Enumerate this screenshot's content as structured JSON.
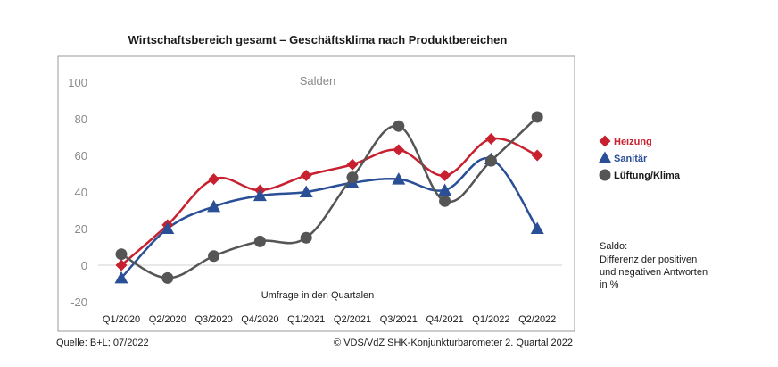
{
  "chart_data": {
    "type": "line",
    "title": "Wirtschaftsbereich gesamt – Geschäftsklima nach Produktbereichen",
    "plot_label": "Salden",
    "xlabel": "Umfrage in den Quartalen",
    "ylabel": "",
    "ylim": [
      -20,
      100
    ],
    "yticks": [
      -20,
      0,
      20,
      40,
      60,
      80,
      100
    ],
    "grid": false,
    "legend_position": "right",
    "categories": [
      "Q1/2020",
      "Q2/2020",
      "Q3/2020",
      "Q4/2020",
      "Q1/2021",
      "Q2/2021",
      "Q3/2021",
      "Q4/2021",
      "Q1/2022",
      "Q2/2022"
    ],
    "series": [
      {
        "name": "Heizung",
        "marker": "diamond",
        "color": "#c8202f",
        "values": [
          0,
          22,
          47,
          41,
          49,
          55,
          63,
          49,
          69,
          60
        ]
      },
      {
        "name": "Sanitär",
        "marker": "triangle",
        "color": "#2a4f96",
        "values": [
          -7,
          20,
          32,
          38,
          40,
          45,
          47,
          41,
          58,
          20
        ]
      },
      {
        "name": "Lüftung/Klima",
        "marker": "circle",
        "color": "#555555",
        "values": [
          6,
          -7,
          5,
          13,
          15,
          48,
          76,
          35,
          57,
          81
        ]
      }
    ]
  },
  "note": {
    "lines": [
      "Saldo:",
      "Differenz der positiven",
      "und negativen Antworten",
      "in %"
    ]
  },
  "footer": {
    "source": "Quelle: B+L; 07/2022",
    "copyright": "© VDS/VdZ SHK-Konjunkturbarometer 2. Quartal 2022"
  }
}
